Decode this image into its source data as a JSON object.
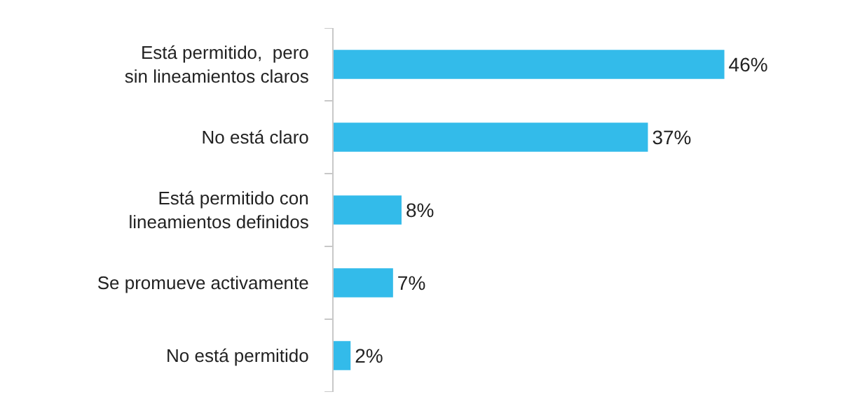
{
  "chart_data": {
    "type": "bar",
    "orientation": "horizontal",
    "categories": [
      "Está permitido,  pero sin lineamientos claros",
      "No está claro",
      "Está permitido con lineamientos definidos",
      "Se promueve activamente",
      "No está permitido"
    ],
    "values": [
      46,
      37,
      8,
      7,
      2
    ],
    "value_labels": [
      "46%",
      "37%",
      "8%",
      "7%",
      "2%"
    ],
    "color": "#33bbea"
  }
}
